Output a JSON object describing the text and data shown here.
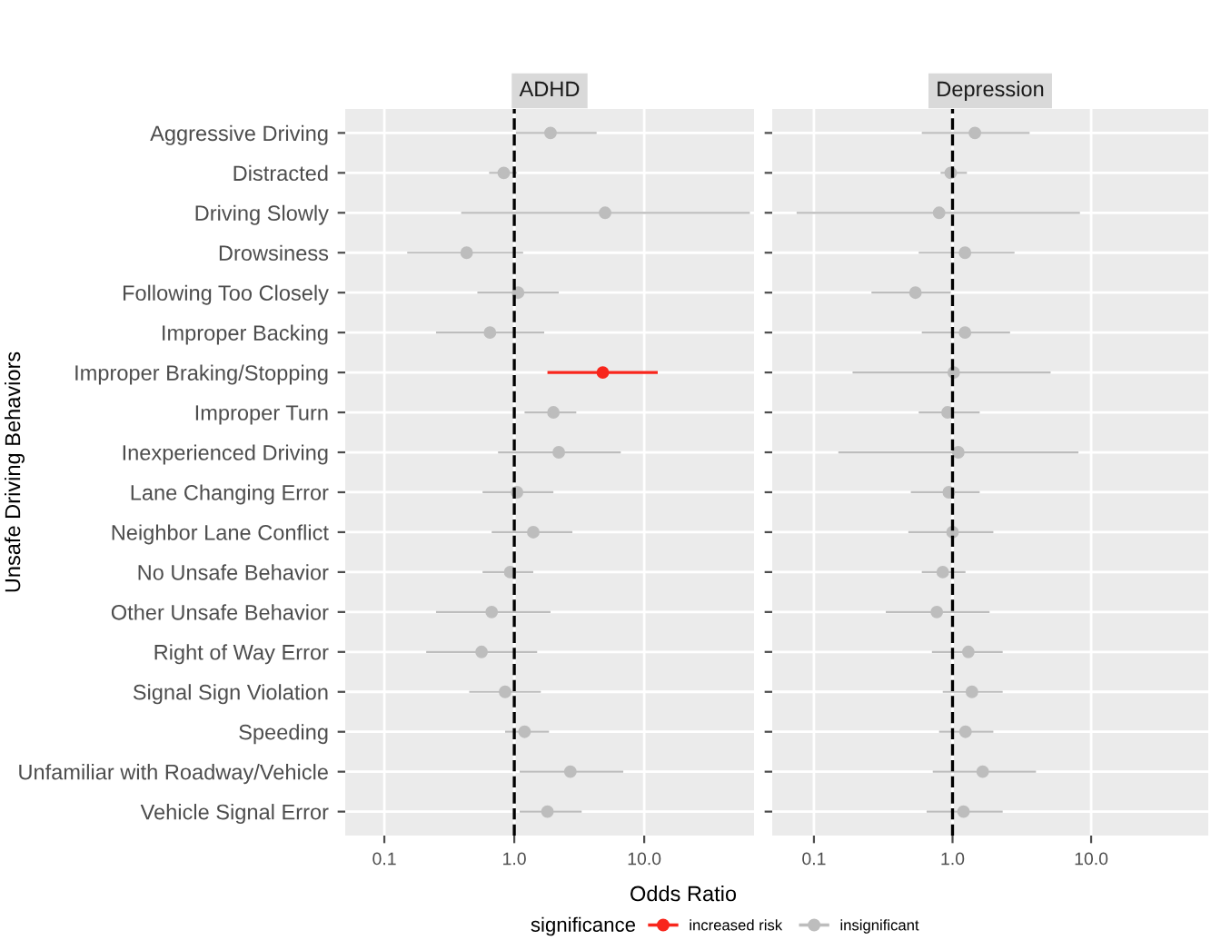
{
  "chart_data": [
    {
      "type": "scatter",
      "title": "ADHD",
      "xlabel": "Odds Ratio",
      "ylabel": "Unsafe Driving Behaviors",
      "orientation": "horizontal",
      "log": "x",
      "xlim": [
        0.05,
        70
      ],
      "xticks": [
        {
          "value": 0.1,
          "label": "0.1"
        },
        {
          "value": 1,
          "label": "1.0"
        },
        {
          "value": 10,
          "label": "10.0"
        }
      ],
      "grid": true,
      "legend": "bottom",
      "legend_title": "significance",
      "marker": "circle",
      "categories": [
        "Aggressive Driving",
        "Distracted",
        "Driving Slowly",
        "Drowsiness",
        "Following Too Closely",
        "Improper Backing",
        "Improper Braking/Stopping",
        "Improper Turn",
        "Inexperienced Driving",
        "Lane Changing Error",
        "Neighbor Lane Conflict",
        "No Unsafe Behavior",
        "Other Unsafe Behavior",
        "Right of Way Error",
        "Signal Sign Violation",
        "Speeding",
        "Unfamiliar with Roadway/Vehicle",
        "Vehicle Signal Error"
      ],
      "series": [
        {
          "name": "increased risk",
          "color": "#f8261c",
          "values": [
            null,
            null,
            null,
            null,
            null,
            null,
            4.8,
            null,
            null,
            null,
            null,
            null,
            null,
            null,
            null,
            null,
            null,
            null
          ],
          "errors": [
            null,
            null,
            null,
            null,
            null,
            null,
            [
              1.8,
              12.7
            ],
            null,
            null,
            null,
            null,
            null,
            null,
            null,
            null,
            null,
            null,
            null
          ]
        },
        {
          "name": "insignificant",
          "color": "#bdbdbd",
          "values": [
            1.9,
            0.83,
            5.0,
            0.43,
            1.07,
            0.65,
            null,
            2.0,
            2.2,
            1.05,
            1.4,
            0.93,
            0.67,
            0.56,
            0.85,
            1.2,
            2.7,
            1.8
          ],
          "errors": [
            [
              1.03,
              4.3
            ],
            [
              0.64,
              1.05
            ],
            [
              0.39,
              65
            ],
            [
              0.15,
              1.17
            ],
            [
              0.52,
              2.2
            ],
            [
              0.25,
              1.7
            ],
            null,
            [
              1.2,
              3.0
            ],
            [
              0.75,
              6.6
            ],
            [
              0.57,
              2.0
            ],
            [
              0.67,
              2.8
            ],
            [
              0.57,
              1.4
            ],
            [
              0.25,
              1.9
            ],
            [
              0.21,
              1.5
            ],
            [
              0.45,
              1.6
            ],
            [
              0.85,
              1.85
            ],
            [
              1.1,
              6.9
            ],
            [
              1.1,
              3.3
            ]
          ]
        }
      ],
      "ref_lines": [
        {
          "axis": "x",
          "value": 1,
          "line_style": "dashed",
          "color": "#000000"
        }
      ]
    },
    {
      "type": "scatter",
      "title": "Depression",
      "orientation": "horizontal",
      "log": "x",
      "xlim": [
        0.05,
        70
      ],
      "xticks": [
        {
          "value": 0.1,
          "label": "0.1"
        },
        {
          "value": 1,
          "label": "1.0"
        },
        {
          "value": 10,
          "label": "10.0"
        }
      ],
      "grid": true,
      "tick_labels": "x",
      "marker": "circle",
      "categories": [
        null,
        null,
        null,
        null,
        null,
        null,
        null,
        null,
        null,
        null,
        null,
        null,
        null,
        null,
        null,
        null,
        null,
        null
      ],
      "series": [
        {
          "name": "insignificant",
          "color": "#bdbdbd",
          "values": [
            1.45,
            0.97,
            0.8,
            1.23,
            0.54,
            1.23,
            1.02,
            0.92,
            1.1,
            0.94,
            1.0,
            0.85,
            0.77,
            1.3,
            1.38,
            1.24,
            1.65,
            1.2
          ],
          "errors": [
            [
              0.6,
              3.6
            ],
            [
              0.82,
              1.27
            ],
            [
              0.075,
              8.3
            ],
            [
              0.57,
              2.8
            ],
            [
              0.26,
              0.97
            ],
            [
              0.6,
              2.6
            ],
            [
              0.19,
              5.1
            ],
            [
              0.57,
              1.57
            ],
            [
              0.15,
              8.1
            ],
            [
              0.5,
              1.57
            ],
            [
              0.48,
              1.97
            ],
            [
              0.6,
              1.24
            ],
            [
              0.33,
              1.85
            ],
            [
              0.71,
              2.3
            ],
            [
              0.85,
              2.3
            ],
            [
              0.8,
              1.97
            ],
            [
              0.72,
              4.0
            ],
            [
              0.65,
              2.3
            ]
          ]
        }
      ],
      "ref_lines": [
        {
          "axis": "x",
          "value": 1,
          "line_style": "dashed",
          "color": "#000000"
        }
      ]
    }
  ]
}
